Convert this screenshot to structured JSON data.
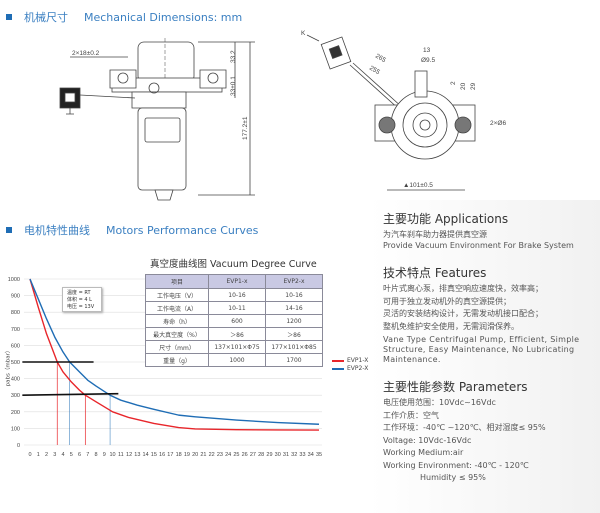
{
  "mechanical": {
    "title_cn": "机械尺寸",
    "title_en": "Mechanical Dimensions: mm",
    "dims": {
      "mount": "2×18±0.2",
      "top": "33.2",
      "flange": "33±0.1",
      "height": "177.2±1",
      "k": "K",
      "len1": "265",
      "len2": "255",
      "d13": "13",
      "d95": "Ø9.5",
      "d20": "20",
      "d29": "29",
      "d2": "2",
      "holes": "2×Ø6",
      "width": "▲101±0.5"
    }
  },
  "performance": {
    "title_cn": "电机特性曲线",
    "title_en": "Motors Performance Curves"
  },
  "table": {
    "title": "真空度曲线图  Vacuum Degree Curve",
    "headers": [
      "项目",
      "EVP1-x",
      "EVP2-x"
    ],
    "rows": [
      [
        "工作电压（V）",
        "10-16",
        "10-16"
      ],
      [
        "工作电流（A）",
        "10-11",
        "14-16"
      ],
      [
        "寿命（h）",
        "600",
        "1200"
      ],
      [
        "最大真空度（%）",
        "＞86",
        "＞86"
      ],
      [
        "尺寸（mm）",
        "137×101×Φ75",
        "177×101×Φ85"
      ],
      [
        "重量（g）",
        "1000",
        "1700"
      ]
    ]
  },
  "note": [
    "温度 = RT",
    "体积 = 4 L",
    "电压 = 13V"
  ],
  "colors": {
    "accent": "#3a7fc1",
    "evp1": "#e8262b",
    "evp2": "#1f6db5"
  },
  "chart_data": {
    "type": "line",
    "xlabel": "",
    "ylabel": "pabs（mbar）",
    "xlim": [
      0,
      35
    ],
    "ylim": [
      0,
      1000
    ],
    "grid": true,
    "legend": "right",
    "x_ticks": [
      0,
      1,
      2,
      3,
      4,
      5,
      6,
      7,
      8,
      9,
      10,
      11,
      12,
      13,
      14,
      15,
      16,
      17,
      18,
      19,
      20,
      21,
      22,
      23,
      24,
      25,
      26,
      27,
      28,
      29,
      30,
      31,
      32,
      33,
      34,
      35
    ],
    "y_ticks": [
      0,
      100,
      200,
      300,
      400,
      500,
      600,
      700,
      800,
      900,
      1000
    ],
    "series": [
      {
        "name": "EVP1-X",
        "color": "#e8262b",
        "x": [
          0,
          1,
          2,
          3,
          3.3,
          4,
          5,
          6,
          6.7,
          8,
          10,
          12,
          15,
          18,
          20,
          25,
          30,
          35
        ],
        "y": [
          1000,
          830,
          670,
          540,
          500,
          440,
          380,
          330,
          300,
          260,
          200,
          165,
          130,
          105,
          97,
          92,
          91,
          90
        ]
      },
      {
        "name": "EVP2-X",
        "color": "#1f6db5",
        "x": [
          0,
          1,
          2,
          3,
          4,
          4.8,
          6,
          7,
          8,
          9.7,
          11,
          13,
          15,
          18,
          20,
          25,
          30,
          35
        ],
        "y": [
          1000,
          880,
          760,
          650,
          560,
          500,
          440,
          390,
          355,
          300,
          270,
          240,
          215,
          180,
          170,
          150,
          135,
          125
        ]
      }
    ],
    "reference_lines": [
      {
        "y": 500,
        "x_evp1": 3.3,
        "x_evp2": 4.8
      },
      {
        "y": 300,
        "x_evp1": 6.7,
        "x_evp2": 9.7
      }
    ]
  },
  "applications": {
    "title": "主要功能  Applications",
    "cn": "为汽车刹车助力器提供真空源",
    "en": "Provide Vacuum Environment For Brake System"
  },
  "features": {
    "title": "技术特点 Features",
    "cn": [
      "叶片式离心泵，排真空响应速度快，效率高；",
      "可用于独立发动机外的真空源提供；",
      "灵活的安装结构设计，无需发动机接口配合；",
      "整机免维护安全使用，无需润滑保养。"
    ],
    "en": "Vane Type Centrifugal Pump, Efficient, Simple Structure, Easy Maintenance, No Lubricating Maintenance."
  },
  "parameters": {
    "title": "主要性能参数 Parameters",
    "lines": [
      "电压使用范围：10Vdc~16Vdc",
      "工作介质：空气",
      "工作环境：-40℃ ~120℃、相对湿度≤ 95%",
      "Voltage: 10Vdc-16Vdc",
      "Working Medium:air",
      "Working Environment: -40℃ - 120℃"
    ],
    "humidity": "Humidity ≤ 95%"
  }
}
